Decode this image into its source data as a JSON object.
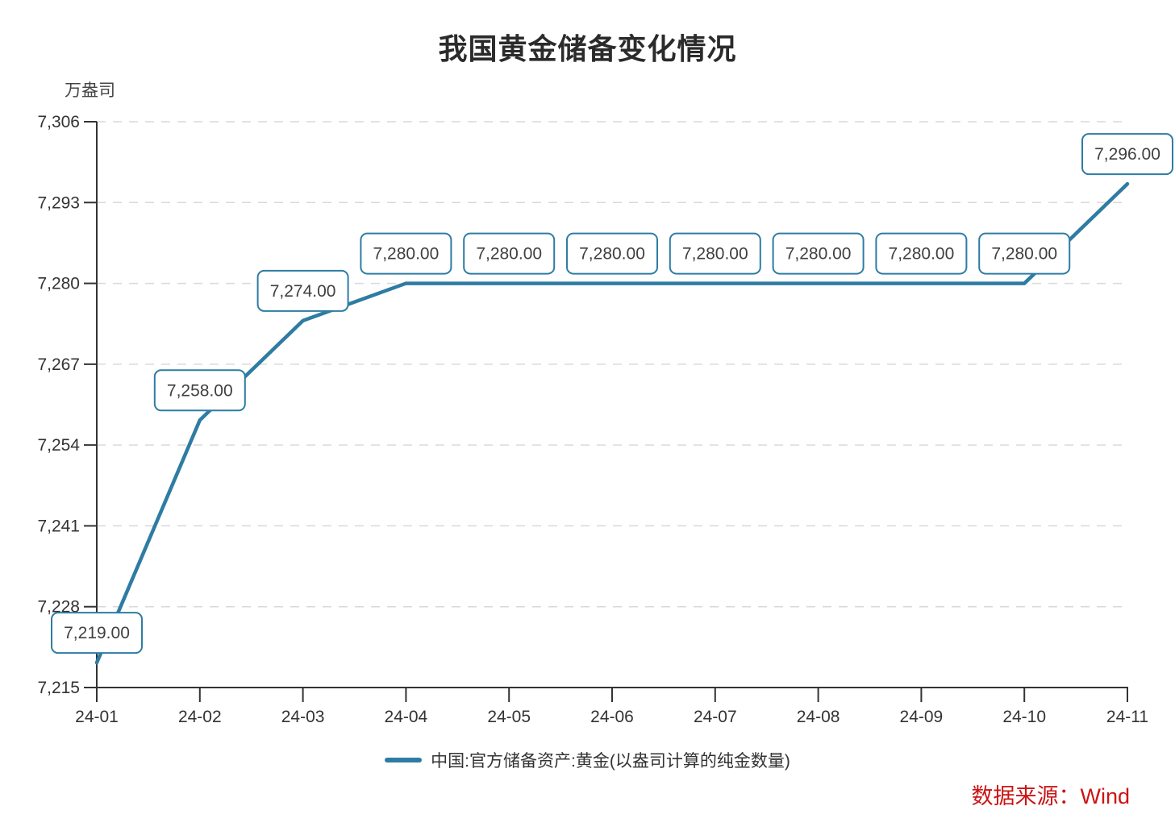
{
  "title": "我国黄金储备变化情况",
  "legend": {
    "label": "中国:官方储备资产:黄金(以盎司计算的纯金数量)",
    "swatch_color": "#2e7ca3"
  },
  "source_note": {
    "text": "数据来源：Wind",
    "color": "#cc1414"
  },
  "chart_data": {
    "type": "line",
    "title": "我国黄金储备变化情况",
    "unit_label": "万盎司",
    "categories": [
      "24-01",
      "24-02",
      "24-03",
      "24-04",
      "24-05",
      "24-06",
      "24-07",
      "24-08",
      "24-09",
      "24-10",
      "24-11"
    ],
    "series": [
      {
        "name": "中国:官方储备资产:黄金(以盎司计算的纯金数量)",
        "color": "#2e7ca3",
        "values": [
          7219,
          7258,
          7274,
          7280,
          7280,
          7280,
          7280,
          7280,
          7280,
          7280,
          7296
        ],
        "point_labels": [
          "7,219.00",
          "7,258.00",
          "7,274.00",
          "7,280.00",
          "7,280.00",
          "7,280.00",
          "7,280.00",
          "7,280.00",
          "7,280.00",
          "7,280.00",
          "7,296.00"
        ]
      }
    ],
    "ylim": [
      7215,
      7306
    ],
    "yticks": [
      {
        "value": 7215,
        "label": "7,215"
      },
      {
        "value": 7228,
        "label": "7,228"
      },
      {
        "value": 7241,
        "label": "7,241"
      },
      {
        "value": 7254,
        "label": "7,254"
      },
      {
        "value": 7267,
        "label": "7,267"
      },
      {
        "value": 7280,
        "label": "7,280"
      },
      {
        "value": 7293,
        "label": "7,293"
      },
      {
        "value": 7306,
        "label": "7,306"
      }
    ],
    "grid": true,
    "gridline_color": "#d9d9d9",
    "axis_color": "#333333",
    "label_text_color": "#404040",
    "legend_position": "bottom"
  }
}
